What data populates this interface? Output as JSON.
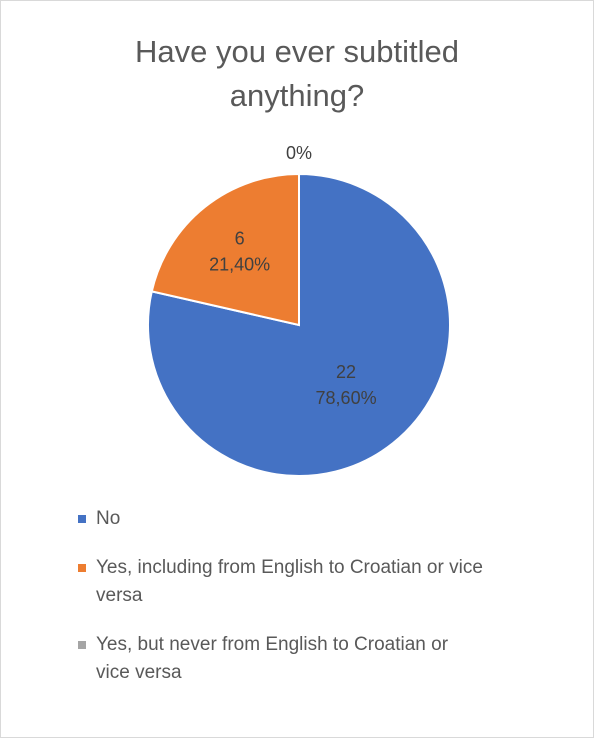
{
  "chart_data": {
    "type": "pie",
    "title": "Have you ever subtitled anything?",
    "title_lines": [
      "Have you ever subtitled",
      "anything?"
    ],
    "series": [
      {
        "name": "No",
        "value": 22,
        "percent_label": "78,60%",
        "color": "#4472C4"
      },
      {
        "name": "Yes, including from English to Croatian or vice versa",
        "value": 6,
        "percent_label": "21,40%",
        "color": "#ED7D31"
      },
      {
        "name": "Yes, but never from English to Croatian or vice versa",
        "value": 0,
        "percent_label": "0%",
        "color": "#A5A5A5"
      }
    ],
    "legend_lines": [
      [
        "No"
      ],
      [
        "Yes, including from English to Croatian or vice",
        "versa"
      ],
      [
        "Yes, but never from English to Croatian or",
        "vice versa"
      ]
    ],
    "legend_position": "bottom",
    "start_angle_deg": 0,
    "direction": "clockwise"
  }
}
